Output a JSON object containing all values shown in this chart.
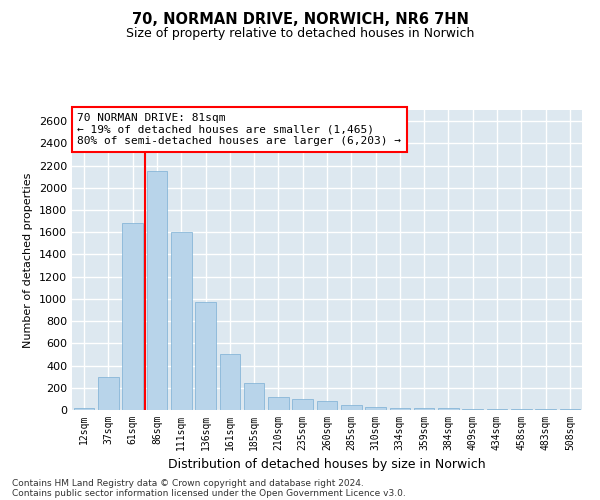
{
  "title1": "70, NORMAN DRIVE, NORWICH, NR6 7HN",
  "title2": "Size of property relative to detached houses in Norwich",
  "xlabel": "Distribution of detached houses by size in Norwich",
  "ylabel": "Number of detached properties",
  "categories": [
    "12sqm",
    "37sqm",
    "61sqm",
    "86sqm",
    "111sqm",
    "136sqm",
    "161sqm",
    "185sqm",
    "210sqm",
    "235sqm",
    "260sqm",
    "285sqm",
    "310sqm",
    "334sqm",
    "359sqm",
    "384sqm",
    "409sqm",
    "434sqm",
    "458sqm",
    "483sqm",
    "508sqm"
  ],
  "values": [
    20,
    300,
    1680,
    2150,
    1600,
    970,
    500,
    245,
    120,
    100,
    85,
    45,
    30,
    20,
    15,
    15,
    10,
    8,
    5,
    5,
    10
  ],
  "bar_color": "#b8d4ea",
  "bar_edge_color": "#7aafd4",
  "bar_width": 0.85,
  "red_line_x": 2.5,
  "annotation_text": "70 NORMAN DRIVE: 81sqm\n← 19% of detached houses are smaller (1,465)\n80% of semi-detached houses are larger (6,203) →",
  "ylim": [
    0,
    2700
  ],
  "yticks": [
    0,
    200,
    400,
    600,
    800,
    1000,
    1200,
    1400,
    1600,
    1800,
    2000,
    2200,
    2400,
    2600
  ],
  "background_color": "#dde8f0",
  "grid_color": "white",
  "footnote1": "Contains HM Land Registry data © Crown copyright and database right 2024.",
  "footnote2": "Contains public sector information licensed under the Open Government Licence v3.0."
}
